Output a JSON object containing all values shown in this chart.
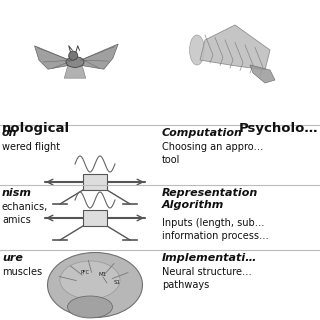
{
  "bg_color": "#ffffff",
  "header_left": "nological",
  "header_right": "Psycholo…",
  "row1_left_title": "on",
  "row1_left_body": "wered flight",
  "row1_right_title": "Computation",
  "row1_right_body": "Choosing an appro…\ntool",
  "row2_left_title": "nism",
  "row2_left_body": "echanics,\namics",
  "row2_right_title": "Representation\nAlgorithm",
  "row2_right_body": "Inputs (length, sub…\ninformation process…",
  "row3_left_title": "ure",
  "row3_left_body": "muscles",
  "row3_right_title": "Implementati…",
  "row3_right_body": "Neural structure…\npathways",
  "line_color": "#bbbbbb",
  "text_color": "#111111",
  "header_fontsize": 9.5,
  "title_fontsize": 8.0,
  "body_fontsize": 7.0
}
